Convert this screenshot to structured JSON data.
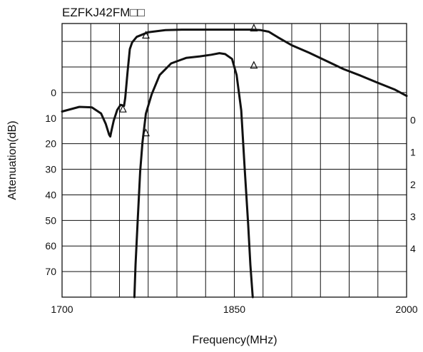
{
  "chart_data": {
    "type": "line",
    "title": "EZFKJ42FM□□",
    "xlabel": "Frequency(MHz)",
    "ylabel": "Attenuation(dB)",
    "x_ticks": [
      "1700",
      "1850",
      "2000"
    ],
    "y_ticks_left": [
      "0",
      "10",
      "20",
      "30",
      "40",
      "50",
      "60",
      "70"
    ],
    "y_ticks_right": [
      "0",
      "1",
      "2",
      "3",
      "4"
    ],
    "xlim": [
      1700,
      2000
    ],
    "ylim_left": [
      -27,
      80
    ],
    "ylim_right": [
      -3,
      5.5
    ],
    "grid": true,
    "series": [
      {
        "axis": "left",
        "points": [
          [
            1700,
            7.4
          ],
          [
            1715,
            5.6
          ],
          [
            1726,
            5.8
          ],
          [
            1734,
            8.2
          ],
          [
            1738,
            12.2
          ],
          [
            1741,
            16.5
          ],
          [
            1742,
            17.2
          ],
          [
            1743,
            15
          ],
          [
            1745,
            11
          ],
          [
            1748,
            6.8
          ],
          [
            1751,
            4.8
          ],
          [
            1754,
            5.2
          ],
          [
            1755,
            2
          ],
          [
            1757,
            -8
          ],
          [
            1759,
            -17
          ],
          [
            1761,
            -19.6
          ],
          [
            1765,
            -21.8
          ],
          [
            1775,
            -23.6
          ],
          [
            1790,
            -24.4
          ],
          [
            1805,
            -24.6
          ],
          [
            1825,
            -24.6
          ],
          [
            1845,
            -24.6
          ],
          [
            1865,
            -24.6
          ],
          [
            1873,
            -24.4
          ],
          [
            1880,
            -23.8
          ],
          [
            1888,
            -21.6
          ],
          [
            1900,
            -18.5
          ],
          [
            1915,
            -15.6
          ],
          [
            1930,
            -12.4
          ],
          [
            1945,
            -9.2
          ],
          [
            1960,
            -6.6
          ],
          [
            1975,
            -3.8
          ],
          [
            1990,
            -1.1
          ],
          [
            2000,
            1.3
          ]
        ],
        "markers": [
          [
            1753,
            6.5
          ],
          [
            1773,
            -22.4
          ],
          [
            1867,
            -25.2
          ]
        ]
      },
      {
        "axis": "right",
        "points": [
          [
            1763,
            5.5
          ],
          [
            1764,
            4.5
          ],
          [
            1766,
            3
          ],
          [
            1768,
            1.6
          ],
          [
            1770,
            0.7
          ],
          [
            1773,
            -0.2
          ],
          [
            1778,
            -0.8
          ],
          [
            1785,
            -1.4
          ],
          [
            1795,
            -1.76
          ],
          [
            1808,
            -1.93
          ],
          [
            1820,
            -1.98
          ],
          [
            1830,
            -2.03
          ],
          [
            1837,
            -2.08
          ],
          [
            1842,
            -2.05
          ],
          [
            1848,
            -1.9
          ],
          [
            1852,
            -1.4
          ],
          [
            1856,
            -0.3
          ],
          [
            1859,
            1.5
          ],
          [
            1862,
            3.2
          ],
          [
            1864,
            4.5
          ],
          [
            1866,
            5.5
          ]
        ],
        "markers": [
          [
            1773,
            0.4
          ],
          [
            1867,
            -1.7
          ]
        ]
      }
    ]
  }
}
